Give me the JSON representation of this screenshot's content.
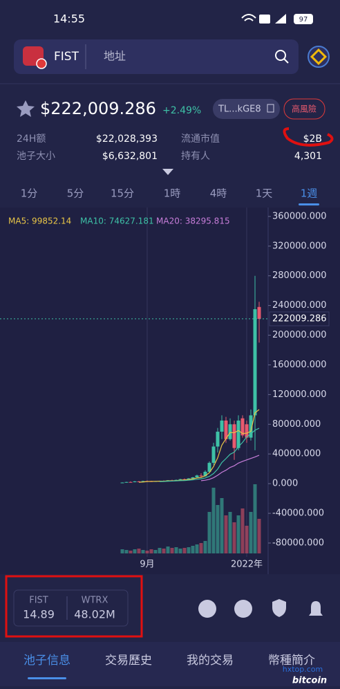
{
  "status_bar": {
    "time": "14:55",
    "battery": "97"
  },
  "search": {
    "token": "FIST",
    "placeholder": "地址"
  },
  "price": {
    "value": "$222,009.286",
    "change": "+2.49%",
    "address": "TL...kGE8",
    "risk": "高風險"
  },
  "stats": [
    {
      "label": "24H额",
      "value": "$22,028,393"
    },
    {
      "label": "流通市值",
      "value": "$2B"
    },
    {
      "label": "池子大小",
      "value": "$6,632,801"
    },
    {
      "label": "持有人",
      "value": "4,301"
    }
  ],
  "timeframes": [
    "1分",
    "5分",
    "15分",
    "1時",
    "4時",
    "1天",
    "1週"
  ],
  "active_timeframe": 6,
  "chart_data": {
    "type": "candlestick",
    "categories": [
      null,
      null,
      null,
      null,
      null,
      null,
      "9月",
      null,
      null,
      null,
      null,
      null,
      null,
      null,
      null,
      null,
      null,
      null,
      null,
      null,
      null,
      null,
      null,
      null,
      null,
      null,
      null,
      null,
      null,
      null,
      "2022年",
      null,
      null,
      null
    ],
    "open": [
      1200,
      1500,
      2200,
      2000,
      3000,
      2500,
      3500,
      3200,
      2900,
      3300,
      3600,
      3400,
      4500,
      4200,
      5000,
      6000,
      5600,
      7000,
      8500,
      11000,
      10000,
      16000,
      28000,
      50000,
      70000,
      85000,
      60000,
      80000,
      48000,
      88000,
      80000,
      62000,
      92000,
      238000
    ],
    "high": [
      1800,
      2500,
      3000,
      3500,
      3500,
      4000,
      4200,
      3800,
      3600,
      4000,
      4500,
      4800,
      5200,
      5500,
      6500,
      7000,
      7500,
      9000,
      12000,
      14000,
      18000,
      30000,
      55000,
      75000,
      92000,
      90000,
      88000,
      85000,
      92000,
      92000,
      85000,
      100000,
      280000,
      245000
    ],
    "low": [
      1000,
      1200,
      1800,
      1800,
      2200,
      2400,
      2800,
      2600,
      2500,
      3000,
      3200,
      3200,
      3900,
      4000,
      4700,
      5200,
      5400,
      6500,
      8000,
      9000,
      9500,
      15000,
      25000,
      42000,
      60000,
      55000,
      58000,
      32000,
      45000,
      62000,
      55000,
      58000,
      45000,
      190000
    ],
    "close": [
      1500,
      2200,
      2000,
      3000,
      2500,
      3500,
      3200,
      2900,
      3300,
      3600,
      3400,
      4500,
      4200,
      5000,
      6000,
      5600,
      7000,
      8500,
      11000,
      10000,
      16000,
      28000,
      50000,
      70000,
      85000,
      60000,
      80000,
      48000,
      85000,
      65000,
      62000,
      92000,
      235000,
      222009.286
    ],
    "volume": [
      6,
      5,
      4,
      6,
      7,
      5,
      4,
      6,
      5,
      8,
      7,
      10,
      8,
      9,
      7,
      8,
      9,
      11,
      13,
      15,
      18,
      60,
      95,
      70,
      80,
      55,
      60,
      45,
      55,
      65,
      40,
      60,
      100,
      50
    ],
    "series": [
      {
        "name": "MA5: 99852.14",
        "color": "#e8c547",
        "values": [
          null,
          null,
          null,
          null,
          1840,
          2240,
          2840,
          3020,
          3080,
          3300,
          3280,
          3740,
          3800,
          4140,
          4620,
          4960,
          5560,
          6420,
          7620,
          8420,
          10500,
          14700,
          23000,
          34800,
          51800,
          60600,
          69000,
          68600,
          71600,
          67600,
          68000,
          70400,
          95400,
          99852.14
        ]
      },
      {
        "name": "MA10: 74627.181",
        "color": "#3ec1a6",
        "values": [
          null,
          null,
          null,
          null,
          null,
          null,
          null,
          null,
          null,
          2740,
          2940,
          3240,
          3460,
          3720,
          4020,
          4220,
          4600,
          5160,
          5920,
          6560,
          7640,
          9820,
          13600,
          19600,
          28400,
          33800,
          39600,
          42400,
          49800,
          55600,
          63000,
          67100,
          72000,
          74627.181
        ]
      },
      {
        "name": "MA20: 38295.815",
        "color": "#c77dd9",
        "values": [
          null,
          null,
          null,
          null,
          null,
          null,
          null,
          null,
          null,
          null,
          null,
          null,
          null,
          null,
          null,
          null,
          null,
          null,
          null,
          4000,
          4600,
          5800,
          8000,
          11300,
          15300,
          18100,
          21900,
          24100,
          27700,
          30000,
          32000,
          34000,
          36000,
          38295.815
        ]
      }
    ],
    "up_color": "#3ec1a6",
    "down_color": "#e85a6e",
    "current_price": 222009.286,
    "ylim": [
      -94000,
      372000
    ],
    "yticks": [
      {
        "value": 360000,
        "label": "360000.000"
      },
      {
        "value": 320000,
        "label": "320000.000"
      },
      {
        "value": 280000,
        "label": "280000.000"
      },
      {
        "value": 240000,
        "label": "240000.000"
      },
      {
        "value": 200000,
        "label": "200000.000"
      },
      {
        "value": 160000,
        "label": "160000.000"
      },
      {
        "value": 120000,
        "label": "120000.000"
      },
      {
        "value": 80000,
        "label": "80000.000"
      },
      {
        "value": 40000,
        "label": "40000.000"
      },
      {
        "value": 0,
        "label": "0.000"
      },
      {
        "value": -40000,
        "label": "-40000.000"
      },
      {
        "value": -80000,
        "label": "-80000.000"
      }
    ]
  },
  "pool": [
    {
      "label": "FIST",
      "value": "14.89"
    },
    {
      "label": "WTRX",
      "value": "48.02M"
    }
  ],
  "tabs": [
    "池子信息",
    "交易歷史",
    "我的交易",
    "幣種簡介"
  ],
  "watermark": {
    "site": "hxtop.com",
    "brand": "bitcoin"
  }
}
